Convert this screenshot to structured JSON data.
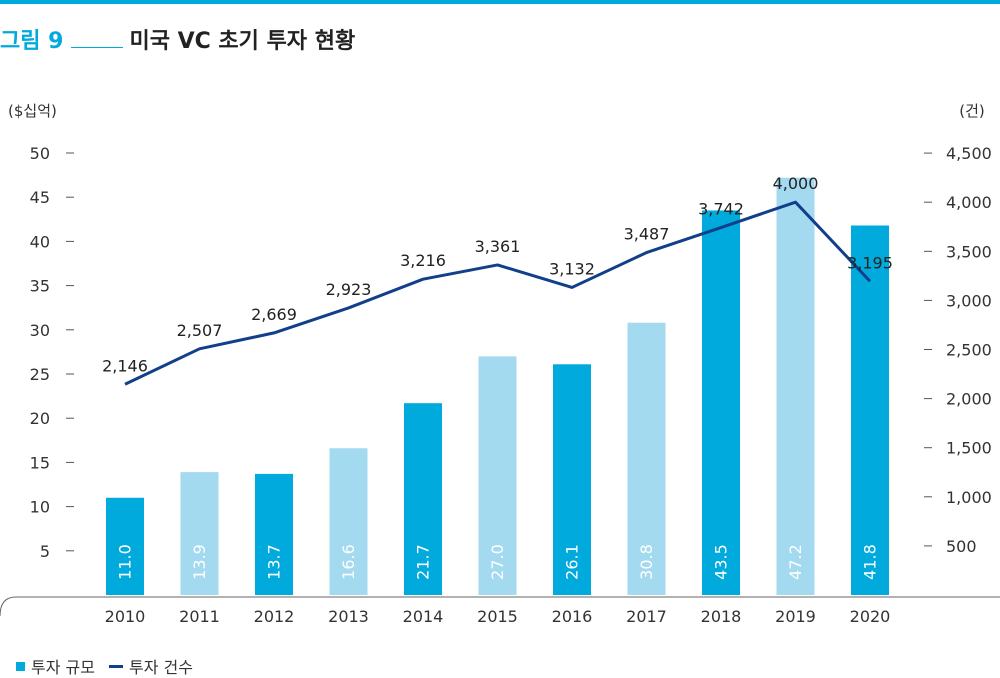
{
  "figure": {
    "label": "그림 9",
    "title": "미국 VC 초기 투자 현황"
  },
  "colors": {
    "accent": "#00aadd",
    "bar_dark": "#00aadd",
    "bar_light": "#a3daf0",
    "line": "#123f8a"
  },
  "chart_data": {
    "type": "bar+line",
    "categories": [
      "2010",
      "2011",
      "2012",
      "2013",
      "2014",
      "2015",
      "2016",
      "2017",
      "2018",
      "2019",
      "2020"
    ],
    "series": [
      {
        "name": "투자 규모",
        "type": "bar",
        "axis": "left",
        "values": [
          11.0,
          13.9,
          13.7,
          16.6,
          21.7,
          27.0,
          26.1,
          30.8,
          43.5,
          47.2,
          41.8
        ],
        "labels": [
          "11.0",
          "13.9",
          "13.7",
          "16.6",
          "21.7",
          "27.0",
          "26.1",
          "30.8",
          "43.5",
          "47.2",
          "41.8"
        ],
        "shades": [
          "dark",
          "light",
          "dark",
          "light",
          "dark",
          "light",
          "dark",
          "light",
          "dark",
          "light",
          "dark"
        ]
      },
      {
        "name": "투자 건수",
        "type": "line",
        "axis": "right",
        "values": [
          2146,
          2507,
          2669,
          2923,
          3216,
          3361,
          3132,
          3487,
          3742,
          4000,
          3195
        ],
        "labels": [
          "2,146",
          "2,507",
          "2,669",
          "2,923",
          "3,216",
          "3,361",
          "3,132",
          "3,487",
          "3,742",
          "4,000",
          "3,195"
        ]
      }
    ],
    "y_left": {
      "unit": "($십억)",
      "ylim": [
        0,
        50
      ],
      "ticks": [
        "5",
        "10",
        "15",
        "20",
        "25",
        "30",
        "35",
        "40",
        "45",
        "50"
      ],
      "tick_values": [
        5,
        10,
        15,
        20,
        25,
        30,
        35,
        40,
        45,
        50
      ]
    },
    "y_right": {
      "unit": "(건)",
      "ylim": [
        0,
        4500
      ],
      "ticks": [
        "500",
        "1,000",
        "1,500",
        "2,000",
        "2,500",
        "3,000",
        "3,500",
        "4,000",
        "4,500"
      ],
      "tick_values": [
        500,
        1000,
        1500,
        2000,
        2500,
        3000,
        3500,
        4000,
        4500
      ]
    },
    "grid": false,
    "legend_position": "bottom-left"
  }
}
